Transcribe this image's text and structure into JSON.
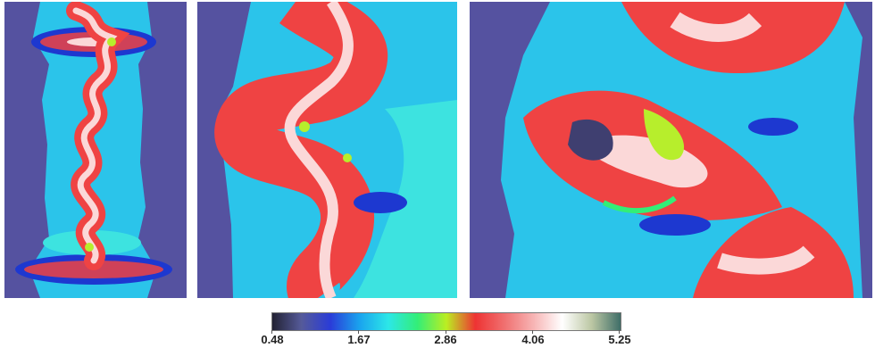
{
  "colorbar": {
    "ticks": [
      "0.48",
      "1.67",
      "2.86",
      "4.06",
      "5.25"
    ],
    "stops": [
      "#222233",
      "#555a99",
      "#2a3cd8",
      "#1aa3ee",
      "#2ce7e8",
      "#33ee77",
      "#bbee22",
      "#ee3333",
      "#f07070",
      "#f7b4b4",
      "#ffffff",
      "#bcc7a3",
      "#3f6e68"
    ]
  },
  "colors": {
    "background_field": "#5552a0",
    "ambient": "#2bc4ea",
    "shocked": "#3de3e0",
    "cold": "#1d38d0",
    "hot": "#ef4343",
    "hottest": "#fbd8d8",
    "mid": "#b7ee2c"
  }
}
